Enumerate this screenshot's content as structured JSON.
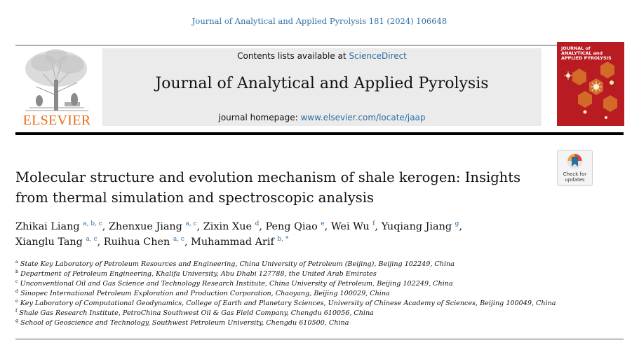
{
  "header": {
    "citation": "Journal of Analytical and Applied Pyrolysis 181 (2024) 106648",
    "contents_prefix": "Contents lists available at ",
    "contents_link": "ScienceDirect",
    "journal_title": "Journal of Analytical and Applied Pyrolysis",
    "homepage_prefix": "journal homepage: ",
    "homepage_link": "www.elsevier.com/locate/jaap",
    "publisher": "ELSEVIER",
    "cover_line1": "JOURNAL of",
    "cover_line2": "ANALYTICAL and",
    "cover_line3": "APPLIED PYROLYSIS",
    "check_line1": "Check for",
    "check_line2": "updates"
  },
  "article": {
    "title_line1": "Molecular structure and evolution mechanism of shale kerogen: Insights",
    "title_line2": "from thermal simulation and spectroscopic analysis",
    "authors": [
      {
        "name": "Zhikai Liang",
        "sup": "a, b, c",
        "sep": ", "
      },
      {
        "name": "Zhenxue Jiang",
        "sup": "a, c",
        "sep": ", "
      },
      {
        "name": "Zixin Xue",
        "sup": "d",
        "sep": ", "
      },
      {
        "name": "Peng Qiao",
        "sup": "e",
        "sep": ", "
      },
      {
        "name": "Wei Wu",
        "sup": "f",
        "sep": ", "
      },
      {
        "name": "Yuqiang Jiang",
        "sup": "g",
        "sep": ","
      },
      {
        "name": "Xianglu Tang",
        "sup": "a, c",
        "sep": ", "
      },
      {
        "name": "Ruihua Chen",
        "sup": "a, c",
        "sep": ", "
      },
      {
        "name": "Muhammad Arif",
        "sup": "b, *",
        "sep": ""
      }
    ],
    "affiliations": [
      {
        "sup": "a",
        "text": "State Key Laboratory of Petroleum Resources and Engineering, China University of Petroleum (Beijing), Beijing 102249, China"
      },
      {
        "sup": "b",
        "text": "Department of Petroleum Engineering, Khalifa University, Abu Dhabi 127788, the United Arab Emirates"
      },
      {
        "sup": "c",
        "text": "Unconventional Oil and Gas Science and Technology Research Institute, China University of Petroleum, Beijing 102249, China"
      },
      {
        "sup": "d",
        "text": "Sinopec International Petroleum Exploration and Production Corporation, Chaoyang, Beijing 100029, China"
      },
      {
        "sup": "e",
        "text": "Key Laboratory of Computational Geodynamics, College of Earth and Planetary Sciences, University of Chinese Academy of Sciences, Beijing 100049, China"
      },
      {
        "sup": "f",
        "text": "Shale Gas Research Institute, PetroChina Southwest Oil & Gas Field Company, Chengdu 610056, China"
      },
      {
        "sup": "g",
        "text": "School of Geoscience and Technology, Southwest Petroleum University, Chengdu 610500, China"
      }
    ]
  },
  "colors": {
    "link": "#2b6ea4",
    "publisher": "#ea6a17",
    "cover": "#b81c22"
  }
}
